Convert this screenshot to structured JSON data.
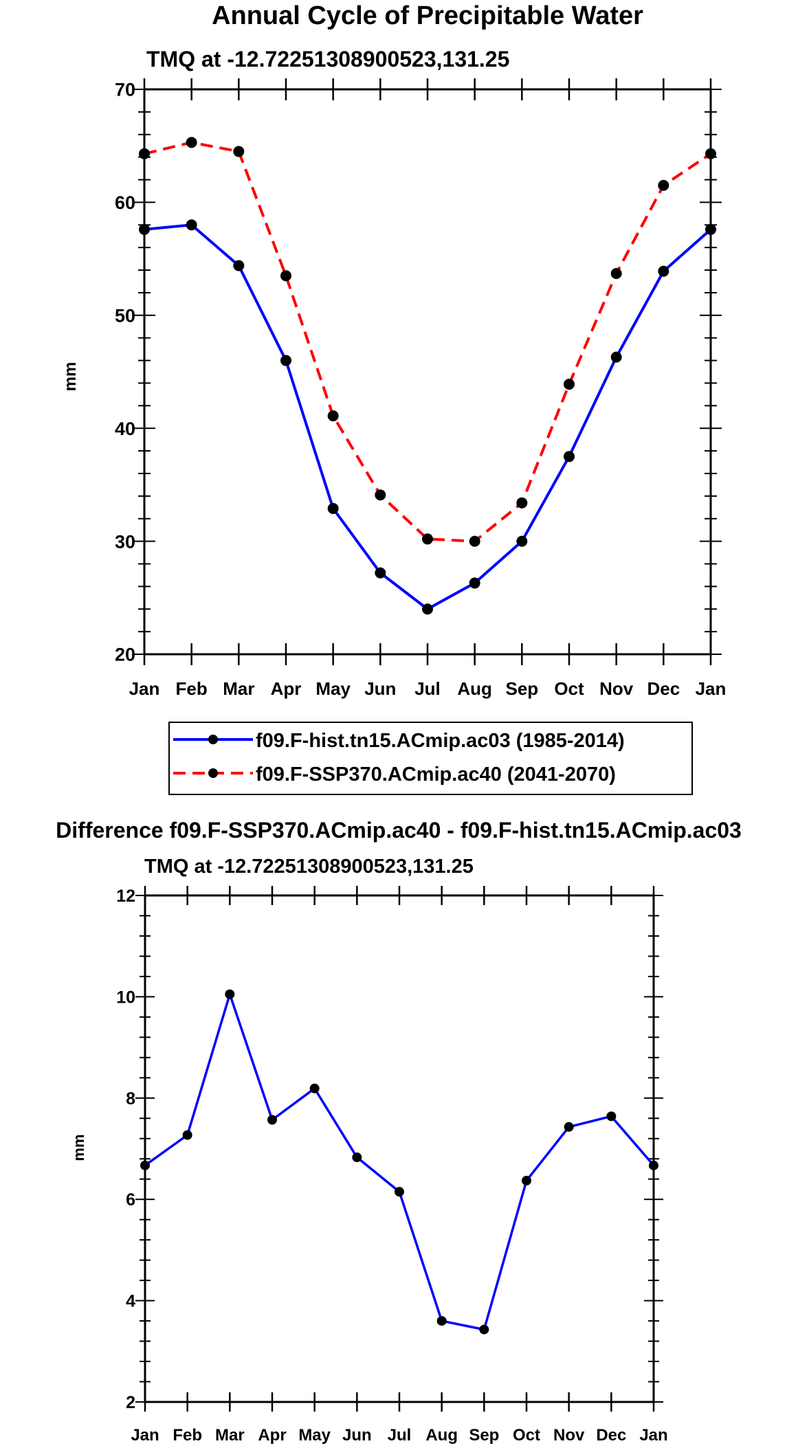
{
  "chart_data": [
    {
      "type": "line",
      "title": "Annual Cycle of Precipitable Water",
      "subtitle": "TMQ at -12.72251308900523,131.25",
      "xlabel": "",
      "ylabel": "mm",
      "categories": [
        "Jan",
        "Feb",
        "Mar",
        "Apr",
        "May",
        "Jun",
        "Jul",
        "Aug",
        "Sep",
        "Oct",
        "Nov",
        "Dec",
        "Jan"
      ],
      "ylim": [
        20,
        70
      ],
      "yticks": [
        20,
        30,
        40,
        50,
        60,
        70
      ],
      "series": [
        {
          "name": "f09.F-hist.tn15.ACmip.ac03 (1985-2014)",
          "color": "#0000ff",
          "dash": "solid",
          "values": [
            57.6,
            58.0,
            54.4,
            46.0,
            32.9,
            27.2,
            24.0,
            26.3,
            30.0,
            37.5,
            46.3,
            53.9,
            57.6
          ]
        },
        {
          "name": "f09.F-SSP370.ACmip.ac40 (2041-2070)",
          "color": "#ff0000",
          "dash": "dashed",
          "values": [
            64.3,
            65.3,
            64.5,
            53.5,
            41.1,
            34.1,
            30.2,
            30.0,
            33.4,
            43.9,
            53.7,
            61.5,
            64.3
          ]
        }
      ],
      "legend": "below"
    },
    {
      "type": "line",
      "title": "Difference f09.F-SSP370.ACmip.ac40 - f09.F-hist.tn15.ACmip.ac03",
      "subtitle": "TMQ at -12.72251308900523,131.25",
      "xlabel": "",
      "ylabel": "mm",
      "categories": [
        "Jan",
        "Feb",
        "Mar",
        "Apr",
        "May",
        "Jun",
        "Jul",
        "Aug",
        "Sep",
        "Oct",
        "Nov",
        "Dec",
        "Jan"
      ],
      "ylim": [
        2,
        12
      ],
      "yticks": [
        2,
        4,
        6,
        8,
        10,
        12
      ],
      "series": [
        {
          "name": "Difference",
          "color": "#0000ff",
          "dash": "solid",
          "values": [
            6.67,
            7.27,
            10.05,
            7.57,
            8.19,
            6.83,
            6.15,
            3.6,
            3.43,
            6.37,
            7.43,
            7.64,
            6.67
          ]
        }
      ]
    }
  ]
}
